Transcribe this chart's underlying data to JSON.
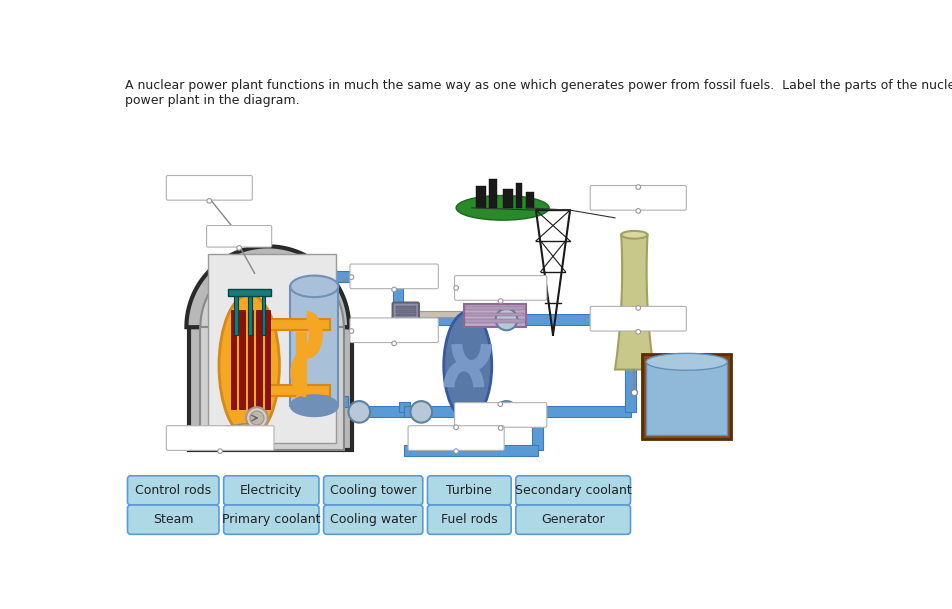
{
  "title": "A nuclear power plant functions in much the same way as one which generates power from fossil fuels.  Label the parts of the nuclear\npower plant in the diagram.",
  "bg": "#ffffff",
  "row1": [
    "Control rods",
    "Electricity",
    "Cooling tower",
    "Turbine",
    "Secondary coolant"
  ],
  "row2": [
    "Steam",
    "Primary coolant",
    "Cooling water",
    "Fuel rods",
    "Generator"
  ],
  "btn_fill": "#add8e6",
  "btn_edge": "#5b9bd5",
  "empty_fill": "#ffffff",
  "empty_edge": "#b0b0b0",
  "pipe_blue": "#5b9bd5",
  "pipe_blue_edge": "#3a7abf",
  "orange": "#f5a623",
  "orange_edge": "#d4891a",
  "dome_outer": "#888888",
  "dome_fill": "#c0c0c0",
  "dome_inner_fill": "#d8d8d8",
  "reactor_fill": "#f5a623",
  "fuel_rod": "#8b1010",
  "control_rod": "#1a7a7a",
  "sg_fill": "#7090b8",
  "sg_light": "#a8c0d8",
  "turb_fill": "#6080a0",
  "gen_fill": "#c0a0c8",
  "tower_fill": "#c8c88a",
  "tower_edge": "#a0a060",
  "tank_brown": "#8B4513",
  "tank_water": "#6090c0",
  "tank_water2": "#4a70a8",
  "green_tree": "#2a8a2a",
  "city_dark": "#222222",
  "pump_fill": "#b0c0d0",
  "pump_edge": "#7090b0",
  "line_color": "#555555",
  "text_color": "#222222",
  "title_fs": 9,
  "btn_fs": 9
}
